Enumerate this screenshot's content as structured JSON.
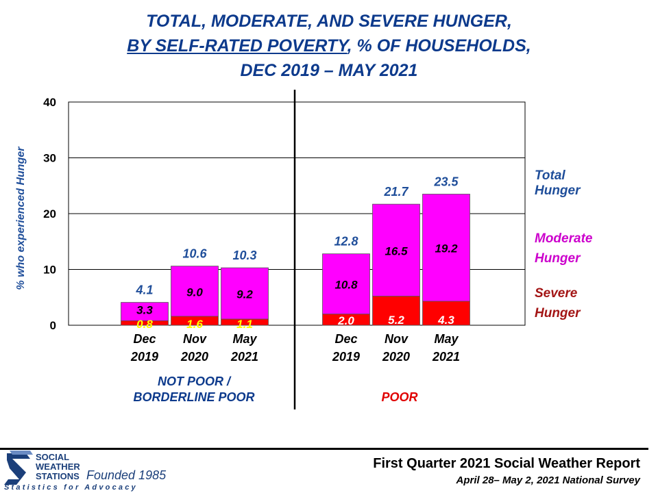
{
  "title": {
    "line1": "TOTAL, MODERATE, AND SEVERE HUNGER,",
    "line2_underlined": "BY SELF-RATED POVERTY",
    "line2_rest": ", % OF HOUSEHOLDS,",
    "line3": "DEC 2019 – MAY 2021"
  },
  "legend": {
    "total": [
      "Total",
      "Hunger"
    ],
    "moderate": [
      "Moderate",
      "Hunger"
    ],
    "severe": [
      "Severe",
      "Hunger"
    ]
  },
  "colors": {
    "severe": "#ff0000",
    "moderate": "#ff00ff",
    "title": "#0d3a8c",
    "total_label": "#1f4e9a",
    "legend_moderate": "#cc00cc",
    "legend_severe": "#a31515",
    "severe_label_yellow": "#ffff00",
    "group_poor": "#e00000"
  },
  "footer": {
    "report_title": "First Quarter 2021 Social Weather Report",
    "survey_dates": "April 28– May 2, 2021 National Survey",
    "logo_lines": [
      "SOCIAL",
      "WEATHER",
      "STATIONS"
    ],
    "logo_founded": "Founded 1985",
    "logo_tagline": "Statistics for Advocacy"
  },
  "chart_data": {
    "type": "bar",
    "stacked": true,
    "ylabel": "% who experienced Hunger",
    "ylim": [
      0,
      40
    ],
    "yticks": [
      0,
      10,
      20,
      30,
      40
    ],
    "grid": true,
    "groups": [
      {
        "name": "NOT POOR / BORDERLINE POOR",
        "name_lines": [
          "NOT POOR /",
          "BORDERLINE POOR"
        ],
        "categories": [
          [
            "Dec",
            "2019"
          ],
          [
            "Nov",
            "2020"
          ],
          [
            "May",
            "2021"
          ]
        ],
        "severe": [
          0.8,
          1.6,
          1.1
        ],
        "moderate": [
          3.3,
          9.0,
          9.2
        ],
        "total": [
          4.1,
          10.6,
          10.3
        ]
      },
      {
        "name": "POOR",
        "name_lines": [
          "POOR"
        ],
        "categories": [
          [
            "Dec",
            "2019"
          ],
          [
            "Nov",
            "2020"
          ],
          [
            "May",
            "2021"
          ]
        ],
        "severe": [
          2.0,
          5.2,
          4.3
        ],
        "moderate": [
          10.8,
          16.5,
          19.2
        ],
        "total": [
          12.8,
          21.7,
          23.5
        ]
      }
    ],
    "series": [
      {
        "name": "Severe Hunger"
      },
      {
        "name": "Moderate Hunger"
      },
      {
        "name": "Total Hunger"
      }
    ]
  }
}
